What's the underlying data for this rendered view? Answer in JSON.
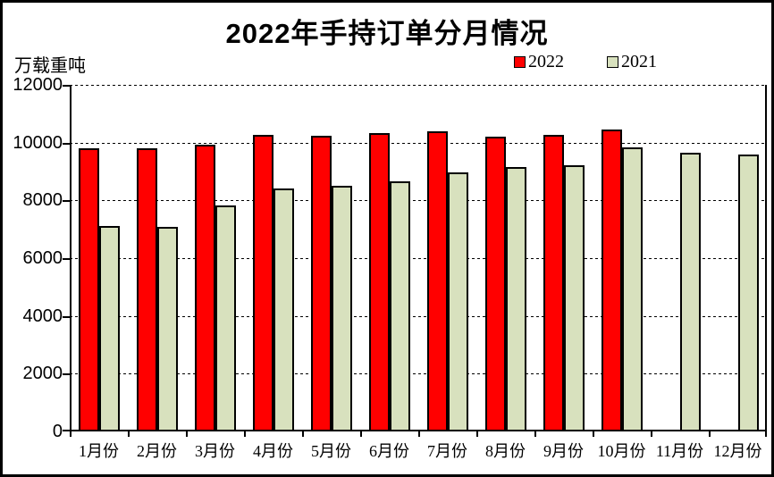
{
  "window": {
    "background_color": "#FFFFFF",
    "frame_border_color": "#000000"
  },
  "chart_data": {
    "type": "bar",
    "title": "2022年手持订单分月情况",
    "unit_label": "万载重吨",
    "xlabel": "",
    "ylabel": "万载重吨",
    "categories": [
      "1月份",
      "2月份",
      "3月份",
      "4月份",
      "5月份",
      "6月份",
      "7月份",
      "8月份",
      "9月份",
      "10月份",
      "11月份",
      "12月份"
    ],
    "series": [
      {
        "name": "2022",
        "color": "#FF0000",
        "values": [
          9810,
          9790,
          9940,
          10270,
          10240,
          10330,
          10390,
          10210,
          10270,
          10440,
          null,
          null
        ]
      },
      {
        "name": "2021",
        "color": "#D8E1BE",
        "values": [
          7100,
          7070,
          7830,
          8410,
          8500,
          8660,
          8970,
          9160,
          9230,
          9820,
          9640,
          9580
        ]
      }
    ],
    "ylim": [
      0,
      12000
    ],
    "y_ticks": [
      0,
      2000,
      4000,
      6000,
      8000,
      10000,
      12000
    ],
    "grid": "horizontal dashed black lines at every 2000",
    "legend_position": "top-right",
    "bar_border_color": "#000000",
    "missing_series_note": "2022 series has no bars for 11月份 and 12月份"
  }
}
